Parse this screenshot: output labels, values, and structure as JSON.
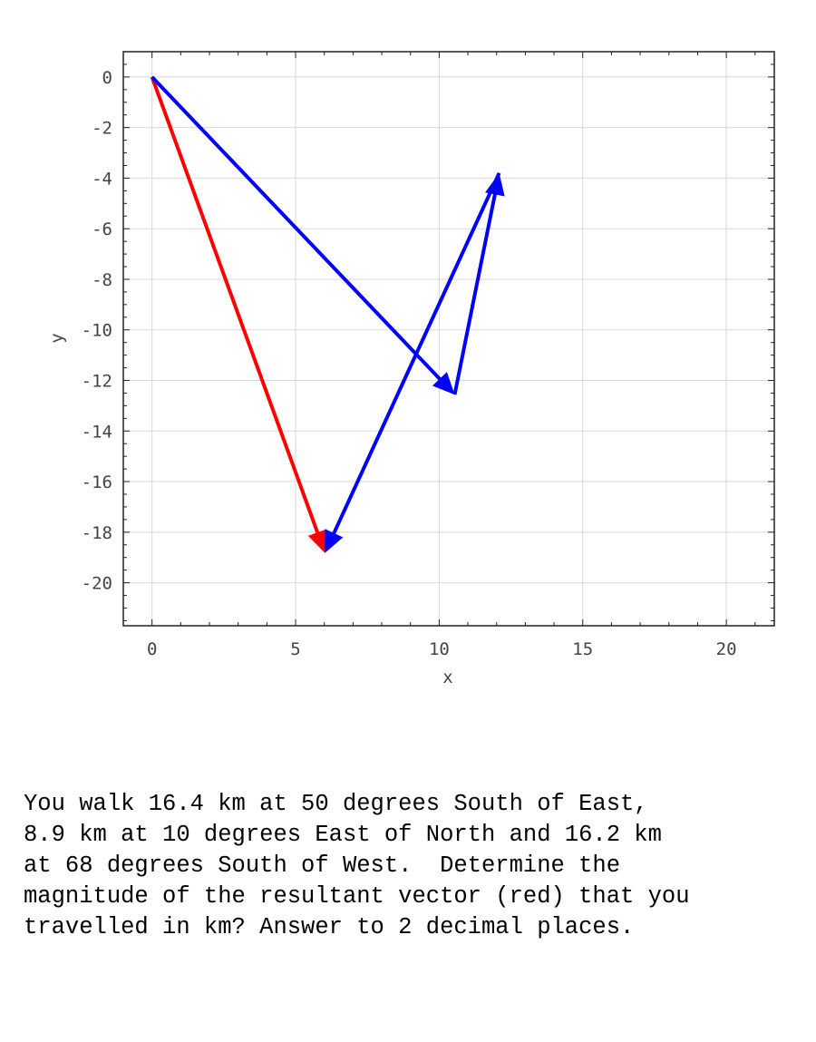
{
  "chart_data": {
    "type": "vector-plot",
    "xlabel": "x",
    "ylabel": "y",
    "xlim": [
      -1,
      21.67
    ],
    "ylim": [
      -21.7,
      1.0
    ],
    "xticks": [
      0,
      5,
      10,
      15,
      20
    ],
    "yticks": [
      0,
      -2,
      -4,
      -6,
      -8,
      -10,
      -12,
      -14,
      -16,
      -18,
      -20
    ],
    "grid": true,
    "vectors": [
      {
        "name": "leg-1",
        "color": "#0000ff",
        "from": [
          0,
          0
        ],
        "to": [
          10.54,
          -12.56
        ]
      },
      {
        "name": "leg-2",
        "color": "#0000ff",
        "from": [
          10.54,
          -12.56
        ],
        "to": [
          12.09,
          -3.8
        ]
      },
      {
        "name": "leg-3",
        "color": "#0000ff",
        "from": [
          12.09,
          -3.8
        ],
        "to": [
          6.02,
          -18.82
        ]
      },
      {
        "name": "resultant",
        "color": "#ff0000",
        "from": [
          0,
          0
        ],
        "to": [
          6.02,
          -18.82
        ]
      }
    ]
  },
  "question": "You walk 16.4 km at 50 degrees South of East,\n8.9 km at 10 degrees East of North and 16.2 km\nat 68 degrees South of West.  Determine the\nmagnitude of the resultant vector (red) that you\ntravelled in km? Answer to 2 decimal places."
}
